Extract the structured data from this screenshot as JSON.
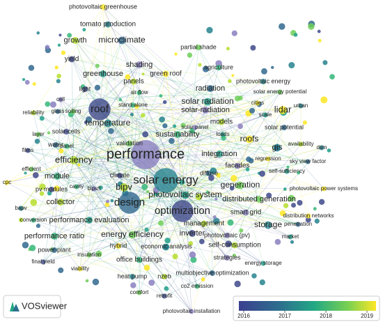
{
  "labels": [
    "photovoltaic greenhouse",
    "tomato production",
    "growth",
    "microclimate",
    "partial shade",
    "yield",
    "agriculture",
    "shading",
    "greenhouse",
    "green roof",
    "photovoltaic energy",
    "panels",
    "radiation",
    "solar energy potential",
    "light",
    "air flow",
    "cell",
    "solar radiation",
    "cities",
    "urban",
    "reliability",
    "glass",
    "soiling",
    "roof",
    "stand-alone",
    "solar-radiation",
    "scale",
    "lidar",
    "temperature",
    "models",
    "solar potential",
    "layer",
    "solar-cells",
    "sustainability",
    "solar panel",
    "loads",
    "roofs",
    "gis",
    "availability",
    "water",
    "validation",
    "films",
    "panel",
    "performance",
    "integration",
    "regression",
    "dsm",
    "efficiency",
    "sky view factor",
    "efficient",
    "climate",
    "module",
    "facades",
    "self-sufficiency",
    "cpc",
    "solar energy",
    "bipv",
    "diffuse",
    "generation",
    "pv modules",
    "cavity",
    "bipv/t",
    "photovoltaic system",
    "photovoltaic power systems",
    "bapv",
    "collector",
    "design",
    "distributed generation",
    "optimization",
    "conversion",
    "smart grid",
    "performance evaluation",
    "distribution networks",
    "storage",
    "management",
    "penetration",
    "energy efficiency",
    "inverter",
    "performance ratio",
    "photovoltaic (pv)",
    "market",
    "hybrid",
    "economic analysis",
    "self-consumption",
    "power-plant",
    "insulation",
    "final yield",
    "office buildings",
    "strategies",
    "energy storage",
    "viability",
    "heat pump",
    "nzeb",
    "multiobjective optimization",
    "comfort",
    "retrofit",
    "co2 emission",
    "photovoltaic installation"
  ],
  "logo": "VOSviewer",
  "legend": {
    "ticks": [
      2016,
      2017,
      2018,
      2019
    ]
  }
}
